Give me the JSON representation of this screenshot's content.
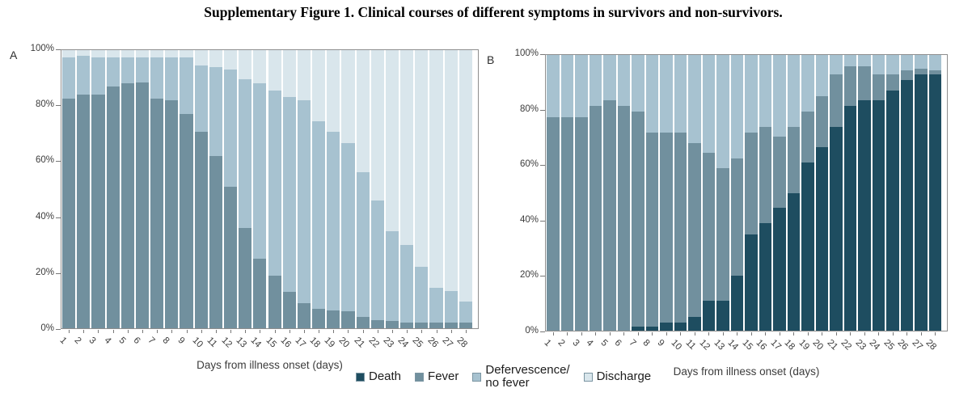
{
  "title": "Supplementary Figure 1. Clinical courses of different symptoms in survivors and non-survivors.",
  "xlabel": "Days from illness onset (days)",
  "y_ticks": [
    "100%",
    "80%",
    "60%",
    "40%",
    "20%",
    "0%"
  ],
  "colors": {
    "death": "#1e4d60",
    "fever": "#71909e",
    "defervescence": "#a7c2d0",
    "discharge": "#d9e6ec",
    "frame": "#8e8e8e",
    "axis_text": "#3c3c3c"
  },
  "legend": [
    {
      "key": "death",
      "label": "Death"
    },
    {
      "key": "fever",
      "label": "Fever"
    },
    {
      "key": "defervescence",
      "label": "Defervescence/\nno fever"
    },
    {
      "key": "discharge",
      "label": "Discharge"
    }
  ],
  "chart_data": [
    {
      "type": "bar",
      "stacked": true,
      "panel": "A",
      "group": "survivors",
      "categories": [
        1,
        2,
        3,
        4,
        5,
        6,
        7,
        8,
        9,
        10,
        11,
        12,
        13,
        14,
        15,
        16,
        17,
        18,
        19,
        20,
        21,
        22,
        23,
        24,
        25,
        26,
        27,
        28
      ],
      "xlabel": "Days from illness onset (days)",
      "ylabel": "",
      "ylim": [
        0,
        100
      ],
      "grid": false,
      "series": [
        {
          "key": "death",
          "name": "Death",
          "values": [
            0,
            0,
            0,
            0,
            0,
            0,
            0,
            0,
            0,
            0,
            0,
            0,
            0,
            0,
            0,
            0,
            0,
            0,
            0,
            0,
            0,
            0,
            0,
            0,
            0,
            0,
            0,
            0
          ]
        },
        {
          "key": "fever",
          "name": "Fever",
          "values": [
            82.5,
            84,
            84,
            87,
            88,
            88.5,
            82.5,
            82,
            77,
            70.5,
            62,
            51,
            36,
            25,
            19,
            13,
            9,
            7,
            6.5,
            6,
            4,
            3,
            2.5,
            2,
            2,
            2,
            2,
            2
          ]
        },
        {
          "key": "defervescence",
          "name": "Defervescence/no fever",
          "values": [
            15,
            14,
            13.5,
            10.5,
            9.5,
            9,
            15,
            15.5,
            20.5,
            24,
            32,
            42,
            53.5,
            63,
            66.5,
            70,
            73,
            67.5,
            64,
            60.5,
            52,
            43,
            32.5,
            28,
            20,
            12.5,
            11.5,
            7.5
          ]
        },
        {
          "key": "discharge",
          "name": "Discharge",
          "values": [
            2.5,
            2,
            2.5,
            2.5,
            2.5,
            2.5,
            2.5,
            2.5,
            2.5,
            5.5,
            6,
            7,
            10.5,
            12,
            14.5,
            17,
            18,
            25.5,
            29.5,
            33.5,
            44,
            54,
            65,
            70,
            78,
            85.5,
            86.5,
            90.5
          ]
        }
      ]
    },
    {
      "type": "bar",
      "stacked": true,
      "panel": "B",
      "group": "non-survivors",
      "categories": [
        1,
        2,
        3,
        4,
        5,
        6,
        7,
        8,
        9,
        10,
        11,
        12,
        13,
        14,
        15,
        16,
        17,
        18,
        19,
        20,
        21,
        22,
        23,
        24,
        25,
        26,
        27,
        28
      ],
      "xlabel": "Days from illness onset (days)",
      "ylabel": "",
      "ylim": [
        0,
        100
      ],
      "grid": false,
      "series": [
        {
          "key": "death",
          "name": "Death",
          "values": [
            0,
            0,
            0,
            0,
            0,
            0,
            1.5,
            1.5,
            3,
            3,
            5,
            11,
            11,
            20,
            35,
            39,
            44.5,
            50,
            61,
            66.5,
            74,
            81.5,
            83.5,
            83.5,
            87,
            91,
            93,
            93
          ]
        },
        {
          "key": "fever",
          "name": "Fever",
          "values": [
            77.5,
            77.5,
            77.5,
            81.5,
            83.5,
            81.5,
            78,
            70.5,
            69,
            69,
            63,
            53.5,
            48,
            42.5,
            37,
            35,
            26,
            24,
            18.5,
            18.5,
            19,
            14.5,
            12.5,
            9.5,
            6,
            3.5,
            2,
            1.5
          ]
        },
        {
          "key": "defervescence",
          "name": "Defervescence/no fever",
          "values": [
            22.5,
            22.5,
            22.5,
            18.5,
            16.5,
            18.5,
            20.5,
            28,
            28,
            28,
            32,
            35.5,
            41,
            37.5,
            28,
            26,
            29.5,
            26,
            20.5,
            15,
            7,
            4,
            4,
            7,
            7,
            5.5,
            5,
            5.5
          ]
        },
        {
          "key": "discharge",
          "name": "Discharge",
          "values": [
            0,
            0,
            0,
            0,
            0,
            0,
            0,
            0,
            0,
            0,
            0,
            0,
            0,
            0,
            0,
            0,
            0,
            0,
            0,
            0,
            0,
            0,
            0,
            0,
            0,
            0,
            0,
            0
          ]
        }
      ]
    }
  ]
}
